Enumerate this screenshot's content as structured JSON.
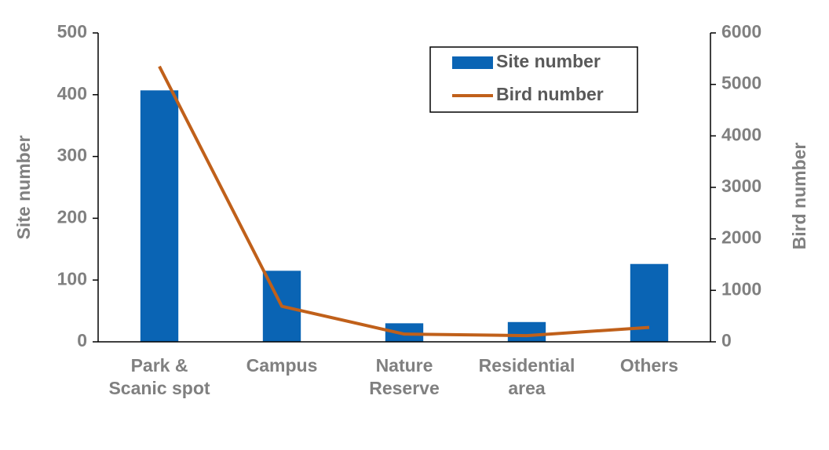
{
  "chart_data": {
    "type": "bar",
    "categories": [
      "Park &\nScanic spot",
      "Campus",
      "Nature\nReserve",
      "Residential\narea",
      "Others"
    ],
    "series": [
      {
        "name": "Site number",
        "type": "bar",
        "color": "#0a64b4",
        "values": [
          407,
          115,
          30,
          32,
          126
        ]
      },
      {
        "name": "Bird number",
        "type": "line",
        "axis": "y2",
        "color": "#c0601a",
        "values": [
          5350,
          690,
          150,
          120,
          280
        ]
      }
    ],
    "ylabel": "Site number",
    "y2label": "Bird number",
    "ylim": [
      0,
      500
    ],
    "yticks": [
      0,
      100,
      200,
      300,
      400,
      500
    ],
    "y2lim": [
      0,
      6000
    ],
    "y2ticks": [
      0,
      1000,
      2000,
      3000,
      4000,
      5000,
      6000
    ],
    "legend": "top-right"
  }
}
